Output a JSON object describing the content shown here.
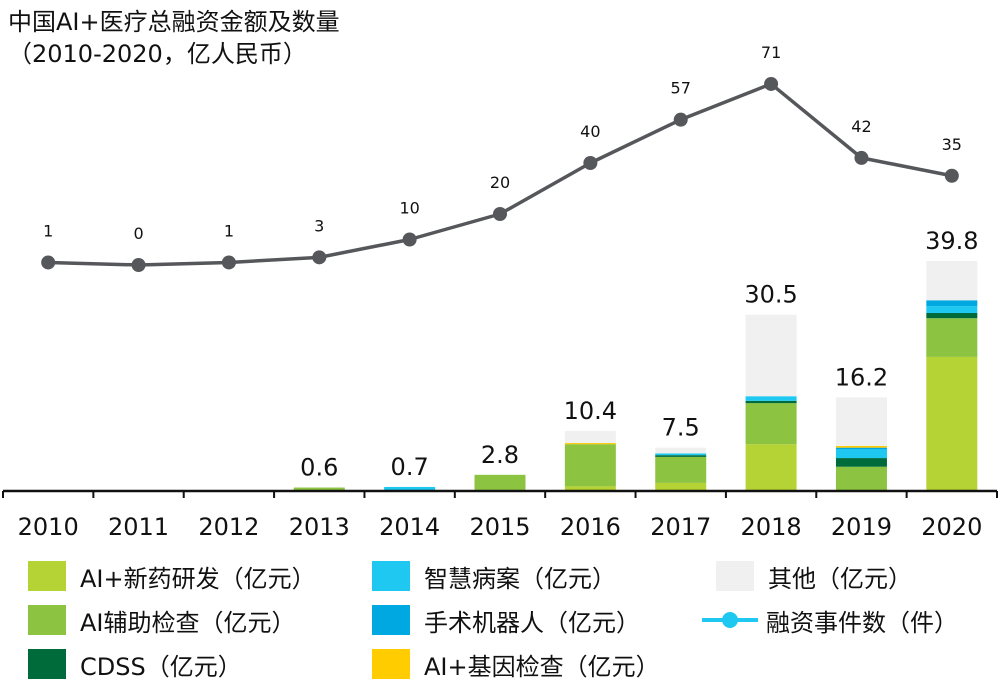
{
  "chart_data": {
    "type": "bar",
    "stacked": true,
    "title": "中国AI+医疗总融资金额及数量",
    "subtitle": "（2010-2020，亿人民币）",
    "xlabel": "",
    "ylabel": "",
    "categories": [
      "2010",
      "2011",
      "2012",
      "2013",
      "2014",
      "2015",
      "2016",
      "2017",
      "2018",
      "2019",
      "2020"
    ],
    "series": [
      {
        "name": "AI+新药研发（亿元）",
        "color": "#b5d334",
        "values": [
          0,
          0,
          0,
          0,
          0,
          0.2,
          0.8,
          1.4,
          8.1,
          0,
          23.2
        ]
      },
      {
        "name": "AI辅助检查（亿元）",
        "color": "#8cc441",
        "values": [
          0,
          0,
          0,
          0.6,
          0,
          2.6,
          7.3,
          4.5,
          7.1,
          4.2,
          6.7
        ]
      },
      {
        "name": "CDSS（亿元）",
        "color": "#006b3a",
        "values": [
          0,
          0,
          0,
          0,
          0,
          0,
          0,
          0.3,
          0.4,
          1.5,
          0.9
        ]
      },
      {
        "name": "智慧病案（亿元）",
        "color": "#1ec8f0",
        "values": [
          0,
          0,
          0,
          0,
          0.7,
          0,
          0,
          0.3,
          0.8,
          1.5,
          1.2
        ]
      },
      {
        "name": "手术机器人（亿元）",
        "color": "#00a8e1",
        "values": [
          0,
          0,
          0,
          0,
          0,
          0,
          0,
          0,
          0,
          0.3,
          1.0
        ]
      },
      {
        "name": "AI+基因检查（亿元）",
        "color": "#ffcc00",
        "values": [
          0,
          0,
          0,
          0,
          0,
          0,
          0.2,
          0,
          0,
          0.3,
          0
        ]
      },
      {
        "name": "其他（亿元）",
        "color": "#f0f0f0",
        "values": [
          0,
          0,
          0,
          0,
          0,
          0,
          2.1,
          1.0,
          14.1,
          8.4,
          6.8
        ]
      }
    ],
    "totals": [
      null,
      null,
      null,
      0.6,
      0.7,
      2.8,
      10.4,
      7.5,
      30.5,
      16.2,
      39.8
    ],
    "total_labels": [
      "",
      "",
      "",
      "0.6",
      "0.7",
      "2.8",
      "10.4",
      "7.5",
      "30.5",
      "16.2",
      "39.8"
    ],
    "line_series": {
      "name": "融资事件数（件）",
      "color": "#55575b",
      "legend_color": "#1ec8f0",
      "values": [
        1,
        0,
        1,
        3,
        10,
        20,
        40,
        57,
        71,
        42,
        35
      ]
    },
    "ylim": [
      0,
      40
    ],
    "grid": false,
    "legend_position": "bottom"
  },
  "legend": {
    "items": [
      {
        "label": "AI+新药研发（亿元）",
        "color": "#b5d334",
        "kind": "box"
      },
      {
        "label": "智慧病案（亿元）",
        "color": "#1ec8f0",
        "kind": "box"
      },
      {
        "label": "其他（亿元）",
        "color": "#f0f0f0",
        "kind": "box"
      },
      {
        "label": "AI辅助检查（亿元）",
        "color": "#8cc441",
        "kind": "box"
      },
      {
        "label": "手术机器人（亿元）",
        "color": "#00a8e1",
        "kind": "box"
      },
      {
        "label": "融资事件数（件）",
        "color": "#1ec8f0",
        "kind": "line"
      },
      {
        "label": "CDSS（亿元）",
        "color": "#006b3a",
        "kind": "box"
      },
      {
        "label": "AI+基因检查（亿元）",
        "color": "#ffcc00",
        "kind": "box"
      }
    ]
  }
}
